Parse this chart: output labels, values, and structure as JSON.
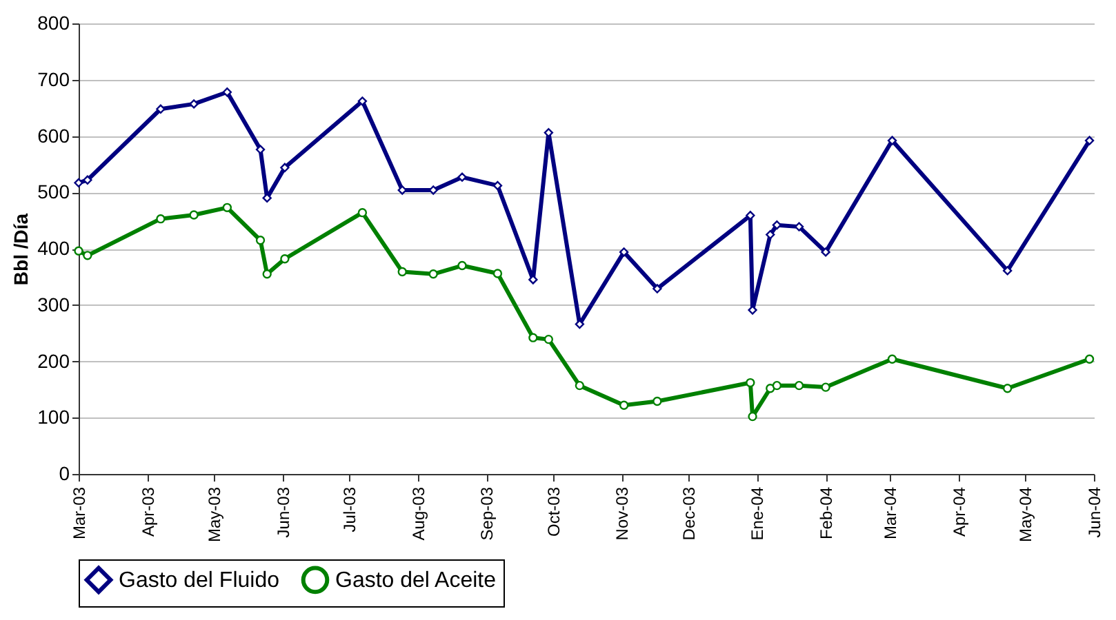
{
  "chart_data": {
    "type": "line",
    "ylabel": "Bbl /Día",
    "x": [
      "2003-03-01",
      "2003-03-05",
      "2003-04-07",
      "2003-04-22",
      "2003-05-07",
      "2003-05-22",
      "2003-05-25",
      "2003-06-02",
      "2003-07-07",
      "2003-07-25",
      "2003-08-08",
      "2003-08-21",
      "2003-09-06",
      "2003-09-22",
      "2003-09-29",
      "2003-10-13",
      "2003-11-02",
      "2003-11-17",
      "2003-12-29",
      "2003-12-30",
      "2004-01-07",
      "2004-01-10",
      "2004-01-20",
      "2004-02-01",
      "2004-03-02",
      "2004-04-23",
      "2004-05-30"
    ],
    "series": [
      {
        "name": "Gasto del Fluido",
        "color": "#000080",
        "marker": "diamond",
        "values": [
          517,
          522,
          648,
          657,
          678,
          576,
          490,
          544,
          662,
          504,
          504,
          527,
          512,
          345,
          606,
          266,
          394,
          329,
          459,
          291,
          425,
          442,
          439,
          394,
          592,
          361,
          592
        ]
      },
      {
        "name": "Gasto del Aceite",
        "color": "#008000",
        "marker": "circle",
        "values": [
          396,
          388,
          453,
          460,
          473,
          415,
          355,
          382,
          464,
          359,
          355,
          370,
          356,
          242,
          239,
          157,
          122,
          129,
          162,
          102,
          152,
          157,
          157,
          154,
          204,
          152,
          204
        ]
      }
    ],
    "xlim": [
      "2003-03-01",
      "2004-06-01"
    ],
    "xticks": [
      {
        "value": "2003-03-01",
        "label": "Mar-03"
      },
      {
        "value": "2003-04-01",
        "label": "Apr-03"
      },
      {
        "value": "2003-05-01",
        "label": "May-03"
      },
      {
        "value": "2003-06-01",
        "label": "Jun-03"
      },
      {
        "value": "2003-07-01",
        "label": "Jul-03"
      },
      {
        "value": "2003-08-01",
        "label": "Aug-03"
      },
      {
        "value": "2003-09-01",
        "label": "Sep-03"
      },
      {
        "value": "2003-10-01",
        "label": "Oct-03"
      },
      {
        "value": "2003-11-01",
        "label": "Nov-03"
      },
      {
        "value": "2003-12-01",
        "label": "Dec-03"
      },
      {
        "value": "2004-01-01",
        "label": "Ene-04"
      },
      {
        "value": "2004-02-01",
        "label": "Feb-04"
      },
      {
        "value": "2004-03-01",
        "label": "Mar-04"
      },
      {
        "value": "2004-04-01",
        "label": "Apr-04"
      },
      {
        "value": "2004-05-01",
        "label": "May-04"
      },
      {
        "value": "2004-06-01",
        "label": "Jun-04"
      }
    ],
    "ylim": [
      0,
      800
    ],
    "yticks": [
      0,
      100,
      200,
      300,
      400,
      500,
      600,
      700,
      800
    ],
    "grid": "y",
    "legend": "bottom",
    "line_style": "solid"
  }
}
